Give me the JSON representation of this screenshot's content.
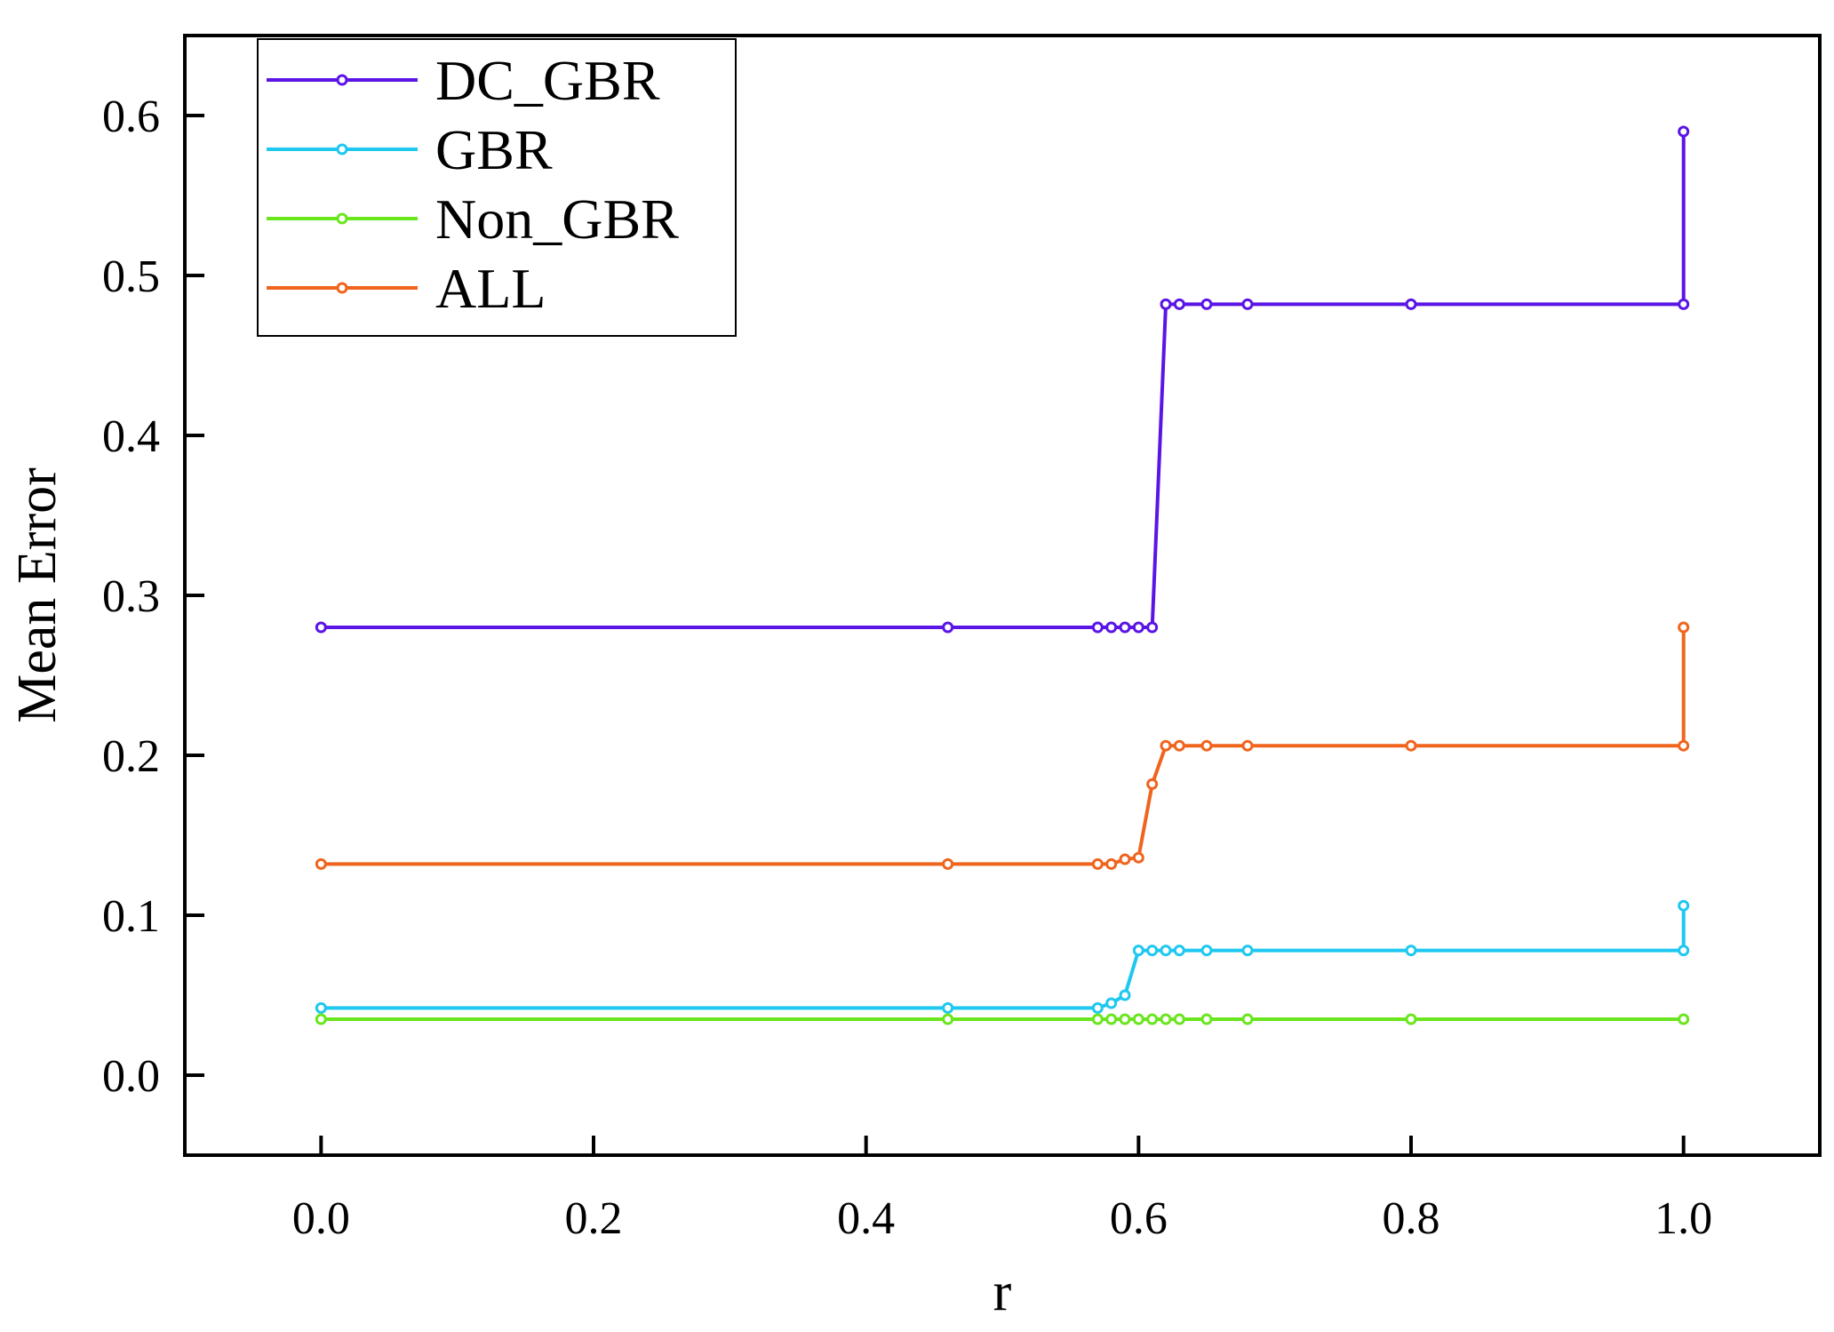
{
  "chart_data": {
    "type": "line",
    "xlabel": "r",
    "ylabel": "Mean Error",
    "xlim": [
      -0.1,
      1.1
    ],
    "ylim": [
      -0.05,
      0.65
    ],
    "xticks": [
      0.0,
      0.2,
      0.4,
      0.6,
      0.8,
      1.0
    ],
    "xtick_labels": [
      "0.0",
      "0.2",
      "0.4",
      "0.6",
      "0.8",
      "1.0"
    ],
    "yticks": [
      0.0,
      0.1,
      0.2,
      0.3,
      0.4,
      0.5,
      0.6
    ],
    "ytick_labels": [
      "0.0",
      "0.1",
      "0.2",
      "0.3",
      "0.4",
      "0.5",
      "0.6"
    ],
    "grid": false,
    "legend_position": "top-left",
    "series": [
      {
        "name": "DC_GBR",
        "color": "#5a14e6",
        "points": [
          [
            0,
            0.28
          ],
          [
            0.46,
            0.28
          ],
          [
            0.57,
            0.28
          ],
          [
            0.58,
            0.28
          ],
          [
            0.59,
            0.28
          ],
          [
            0.6,
            0.28
          ],
          [
            0.61,
            0.28
          ],
          [
            0.62,
            0.482
          ],
          [
            0.63,
            0.482
          ],
          [
            0.65,
            0.482
          ],
          [
            0.68,
            0.482
          ],
          [
            0.8,
            0.482
          ],
          [
            1.0,
            0.482
          ],
          [
            1.0,
            0.59
          ]
        ]
      },
      {
        "name": "GBR",
        "color": "#1ec8f0",
        "points": [
          [
            0,
            0.042
          ],
          [
            0.46,
            0.042
          ],
          [
            0.57,
            0.042
          ],
          [
            0.58,
            0.045
          ],
          [
            0.59,
            0.05
          ],
          [
            0.6,
            0.078
          ],
          [
            0.61,
            0.078
          ],
          [
            0.62,
            0.078
          ],
          [
            0.63,
            0.078
          ],
          [
            0.65,
            0.078
          ],
          [
            0.68,
            0.078
          ],
          [
            0.8,
            0.078
          ],
          [
            1.0,
            0.078
          ],
          [
            1.0,
            0.106
          ]
        ]
      },
      {
        "name": "Non_GBR",
        "color": "#6ae61e",
        "points": [
          [
            0,
            0.035
          ],
          [
            0.46,
            0.035
          ],
          [
            0.57,
            0.035
          ],
          [
            0.58,
            0.035
          ],
          [
            0.59,
            0.035
          ],
          [
            0.6,
            0.035
          ],
          [
            0.61,
            0.035
          ],
          [
            0.62,
            0.035
          ],
          [
            0.63,
            0.035
          ],
          [
            0.65,
            0.035
          ],
          [
            0.68,
            0.035
          ],
          [
            0.8,
            0.035
          ],
          [
            1.0,
            0.035
          ]
        ]
      },
      {
        "name": "ALL",
        "color": "#f0641e",
        "points": [
          [
            0,
            0.132
          ],
          [
            0.46,
            0.132
          ],
          [
            0.57,
            0.132
          ],
          [
            0.58,
            0.132
          ],
          [
            0.59,
            0.135
          ],
          [
            0.6,
            0.136
          ],
          [
            0.61,
            0.182
          ],
          [
            0.62,
            0.206
          ],
          [
            0.63,
            0.206
          ],
          [
            0.65,
            0.206
          ],
          [
            0.68,
            0.206
          ],
          [
            0.8,
            0.206
          ],
          [
            1.0,
            0.206
          ],
          [
            1.0,
            0.28
          ]
        ]
      }
    ]
  }
}
